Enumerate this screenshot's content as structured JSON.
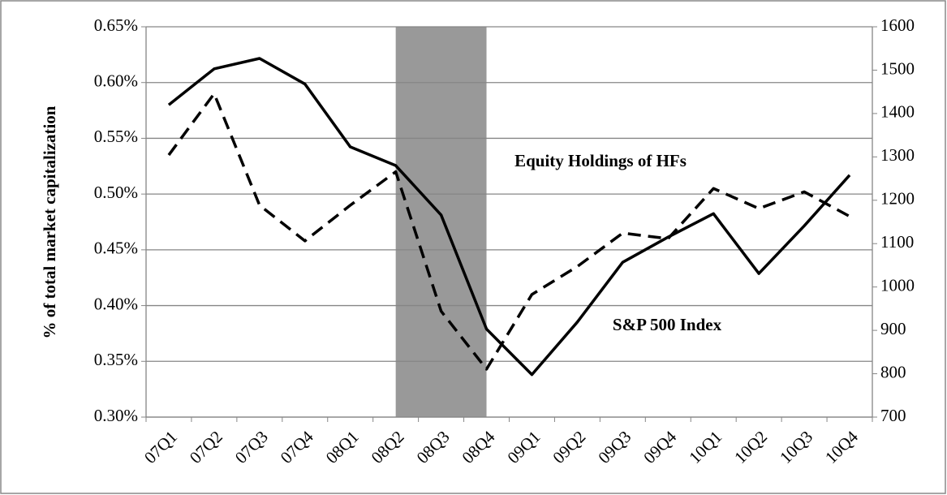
{
  "chart_data": {
    "type": "line",
    "y_label": "% of total market capitalization",
    "categories": [
      "07Q1",
      "07Q2",
      "07Q3",
      "07Q4",
      "08Q1",
      "08Q2",
      "08Q3",
      "08Q4",
      "09Q1",
      "09Q2",
      "09Q3",
      "09Q4",
      "10Q1",
      "10Q2",
      "10Q3",
      "10Q4"
    ],
    "series": [
      {
        "name": "Equity Holdings of HFs",
        "color": "#000000",
        "dash": true,
        "values": [
          0.535,
          0.59,
          0.49,
          0.458,
          0.49,
          0.52,
          0.395,
          0.343,
          0.41,
          0.435,
          0.465,
          0.46,
          0.505,
          0.487,
          0.502,
          0.48
        ]
      },
      {
        "name": "S&P 500 Index",
        "color": "#000000",
        "dash": false,
        "axis": "y2",
        "values": [
          1420,
          1503,
          1527,
          1468,
          1323,
          1280,
          1166,
          903,
          798,
          919,
          1057,
          1115,
          1169,
          1031,
          1141,
          1258
        ]
      }
    ],
    "shaded": {
      "from": "08Q2",
      "to": "08Q4",
      "color": "#999999"
    },
    "ylim": [
      0.3,
      0.65
    ],
    "yticks": [
      {
        "value": 0.3,
        "label": "0.30%"
      },
      {
        "value": 0.35,
        "label": "0.35%"
      },
      {
        "value": 0.4,
        "label": "0.40%"
      },
      {
        "value": 0.45,
        "label": "0.45%"
      },
      {
        "value": 0.5,
        "label": "0.50%"
      },
      {
        "value": 0.55,
        "label": "0.55%"
      },
      {
        "value": 0.6,
        "label": "0.60%"
      },
      {
        "value": 0.65,
        "label": "0.65%"
      }
    ],
    "y2lim": [
      700,
      1600
    ],
    "y2ticks": [
      700,
      800,
      900,
      1000,
      1100,
      1200,
      1300,
      1400,
      1500,
      1600
    ],
    "grid": true
  }
}
